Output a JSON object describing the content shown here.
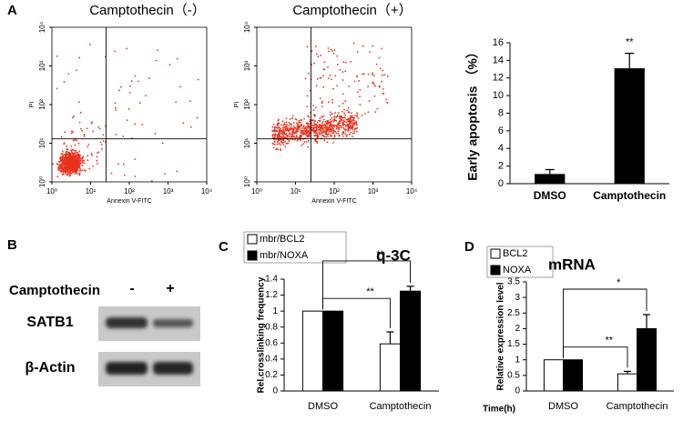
{
  "panel_labels": [
    "A",
    "B",
    "C",
    "D"
  ],
  "blot": {
    "treatment_label": "Camptothecin",
    "lanes": [
      "-",
      "+"
    ],
    "rows": [
      "SATB1",
      "β-Actin"
    ]
  },
  "chart_data": [
    {
      "type": "scatter",
      "title": "Camptothecin（-）",
      "x_label": "Annexin V-FITC",
      "y_label": "PI",
      "log_x": true,
      "log_y": true,
      "xlim": [
        1,
        10000
      ],
      "ylim": [
        1,
        10000
      ],
      "xticks": [
        {
          "value": 1,
          "label": "10⁰"
        },
        {
          "value": 10,
          "label": "10¹"
        },
        {
          "value": 100,
          "label": "10²"
        },
        {
          "value": 1000,
          "label": "10³"
        },
        {
          "value": 10000,
          "label": "10⁴"
        }
      ],
      "yticks": [
        {
          "value": 1,
          "label": "10⁰"
        },
        {
          "value": 10,
          "label": "10¹"
        },
        {
          "value": 100,
          "label": "10²"
        },
        {
          "value": 1000,
          "label": "10³"
        },
        {
          "value": 10000,
          "label": "10⁴"
        }
      ],
      "gate_x": 25,
      "gate_y": 13,
      "color": "#e8321e"
    },
    {
      "type": "scatter",
      "title": "Camptothecin（+）",
      "x_label": "Annexin V-FITC",
      "y_label": "PI",
      "log_x": true,
      "log_y": true,
      "xlim": [
        1,
        10000
      ],
      "ylim": [
        1,
        10000
      ],
      "xticks": [
        {
          "value": 1,
          "label": "10⁰"
        },
        {
          "value": 10,
          "label": "10¹"
        },
        {
          "value": 100,
          "label": "10²"
        },
        {
          "value": 1000,
          "label": "10³"
        },
        {
          "value": 10000,
          "label": "10⁴"
        }
      ],
      "yticks": [
        {
          "value": 1,
          "label": "10⁰"
        },
        {
          "value": 10,
          "label": "10¹"
        },
        {
          "value": 100,
          "label": "10²"
        },
        {
          "value": 1000,
          "label": "10³"
        },
        {
          "value": 10000,
          "label": "10⁴"
        }
      ],
      "gate_x": 25,
      "gate_y": 13,
      "color": "#e8321e"
    },
    {
      "type": "bar",
      "y_label": "Early apoptosis （%）",
      "categories": [
        "DMSO",
        "Camptothecin"
      ],
      "values": [
        1.1,
        13.1
      ],
      "errors": [
        0.5,
        1.7
      ],
      "significance": [
        null,
        "**"
      ],
      "color": "#000000",
      "ylim": [
        0,
        16
      ],
      "yticks": [
        0,
        2,
        4,
        6,
        8,
        10,
        12,
        14,
        16
      ]
    },
    {
      "type": "grouped_bar",
      "title": "q-3C",
      "y_label": "Rel.crosslinking frequency",
      "categories": [
        "DMSO",
        "Camptothecin"
      ],
      "series": [
        {
          "name": "mbr/BCL2",
          "color": "#ffffff",
          "values": [
            1,
            0.59
          ],
          "errors": [
            0,
            0.15
          ]
        },
        {
          "name": "mbr/NOXA",
          "color": "#000000",
          "values": [
            1,
            1.25
          ],
          "errors": [
            0,
            0.06
          ]
        }
      ],
      "comparisons": [
        "**",
        "**"
      ],
      "ylim": [
        0,
        1.4
      ],
      "yticks": [
        0,
        0.2,
        0.4,
        0.6,
        0.8,
        1,
        1.2,
        1.4
      ]
    },
    {
      "type": "grouped_bar",
      "title": "mRNA",
      "y_label": "Relative expression level",
      "x_label": "Time(h)",
      "categories": [
        "DMSO",
        "Camptothecin"
      ],
      "series": [
        {
          "name": "BCL2",
          "color": "#ffffff",
          "values": [
            1,
            0.55
          ],
          "errors": [
            0,
            0.08
          ]
        },
        {
          "name": "NOXA",
          "color": "#000000",
          "values": [
            1,
            2.0
          ],
          "errors": [
            0,
            0.45
          ]
        }
      ],
      "comparisons": [
        "**",
        "*"
      ],
      "ylim": [
        0,
        3.5
      ],
      "yticks": [
        0,
        0.5,
        1,
        1.5,
        2,
        2.5,
        3,
        3.5
      ]
    }
  ]
}
